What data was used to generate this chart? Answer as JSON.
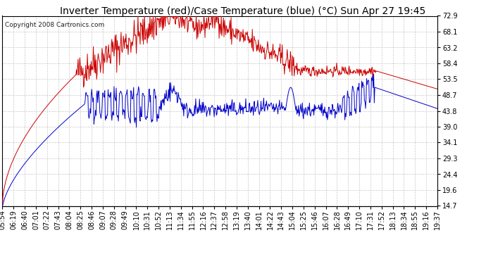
{
  "title": "Inverter Temperature (red)/Case Temperature (blue) (°C) Sun Apr 27 19:45",
  "copyright": "Copyright 2008 Cartronics.com",
  "background_color": "#ffffff",
  "plot_bg_color": "#ffffff",
  "grid_color": "#c8c8c8",
  "yticks": [
    14.7,
    19.6,
    24.4,
    29.3,
    34.1,
    39.0,
    43.8,
    48.7,
    53.5,
    58.4,
    63.2,
    68.1,
    72.9
  ],
  "ylim": [
    14.7,
    72.9
  ],
  "xtick_labels": [
    "05:54",
    "06:19",
    "06:40",
    "07:01",
    "07:22",
    "07:43",
    "08:04",
    "08:25",
    "08:46",
    "09:07",
    "09:28",
    "09:49",
    "10:10",
    "10:31",
    "10:52",
    "11:13",
    "11:34",
    "11:55",
    "12:16",
    "12:37",
    "12:58",
    "13:19",
    "13:40",
    "14:01",
    "14:22",
    "14:43",
    "15:04",
    "15:25",
    "15:46",
    "16:07",
    "16:28",
    "16:49",
    "17:10",
    "17:31",
    "17:52",
    "18:13",
    "18:34",
    "18:55",
    "19:16",
    "19:37"
  ],
  "red_color": "#cc0000",
  "blue_color": "#0000cc",
  "title_fontsize": 10,
  "copyright_fontsize": 6.5,
  "tick_fontsize": 7,
  "border_color": "#000000"
}
